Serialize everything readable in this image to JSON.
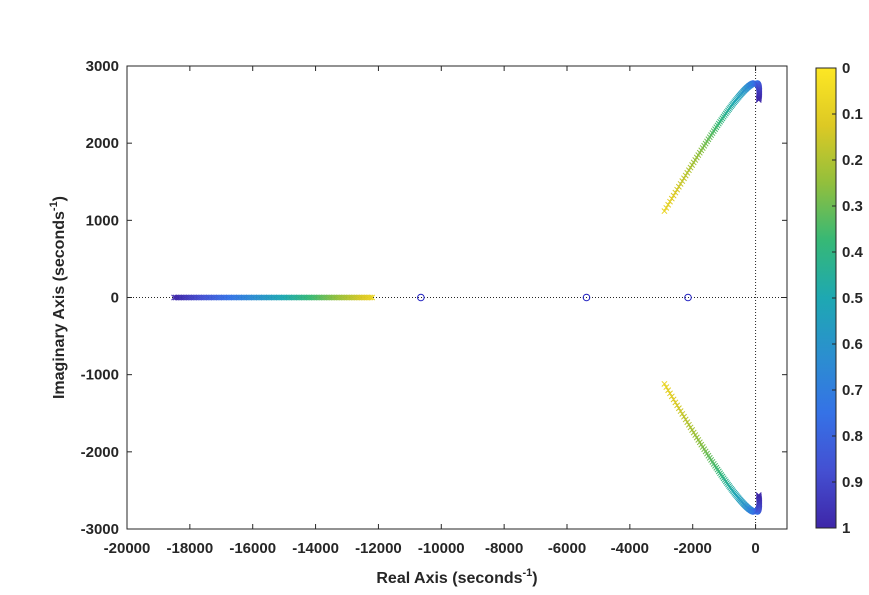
{
  "chart_data": {
    "type": "scatter",
    "title": "",
    "xlabel": {
      "text": "Real Axis (seconds",
      "sup": "-1",
      "close": ")"
    },
    "ylabel": {
      "text": "Imaginary Axis (seconds",
      "sup": "-1",
      "close": ")"
    },
    "xlim": [
      -20000,
      1000
    ],
    "ylim": [
      -3000,
      3000
    ],
    "xticks": [
      -20000,
      -18000,
      -16000,
      -14000,
      -12000,
      -10000,
      -8000,
      -6000,
      -4000,
      -2000,
      0
    ],
    "yticks": [
      -3000,
      -2000,
      -1000,
      0,
      1000,
      2000,
      3000
    ],
    "grid": false,
    "zero_lines": true,
    "colorbar": {
      "ticks": [
        0,
        0.1,
        0.2,
        0.3,
        0.4,
        0.5,
        0.6,
        0.7,
        0.8,
        0.9,
        1
      ],
      "tick_labels": [
        "0",
        "0.1",
        "0.2",
        "0.3",
        "0.4",
        "0.5",
        "0.6",
        "0.7",
        "0.8",
        "0.9",
        "1"
      ],
      "direction": "top-to-bottom",
      "colormap": [
        "#fde724",
        "#ddc924",
        "#92bf3c",
        "#36b876",
        "#1ea8b2",
        "#2b8fcf",
        "#3572e6",
        "#4450d2",
        "#3e26a8"
      ]
    },
    "zeros": [
      {
        "x": -10650,
        "y": 0
      },
      {
        "x": -5380,
        "y": 0
      },
      {
        "x": -2150,
        "y": 0
      }
    ],
    "pole_branches": [
      {
        "name": "",
        "start": {
          "x": -12200,
          "y": 0
        },
        "end": {
          "x": -18500,
          "y": 0
        },
        "count": 120,
        "shape": "real-axis"
      },
      {
        "name": "",
        "start": {
          "x": -2900,
          "y": 1120
        },
        "peak": {
          "x": -520,
          "y": 2610
        },
        "end": {
          "x": 100,
          "y": 2560
        },
        "count": 110,
        "shape": "upper-arc"
      },
      {
        "name": "",
        "start": {
          "x": -2900,
          "y": -1120
        },
        "peak": {
          "x": -520,
          "y": -2610
        },
        "end": {
          "x": 100,
          "y": -2560
        },
        "count": 110,
        "shape": "lower-arc"
      }
    ],
    "colors": {
      "zero_marker": "#2020c0",
      "axis": "#262626",
      "zero_line": "#262626"
    }
  }
}
